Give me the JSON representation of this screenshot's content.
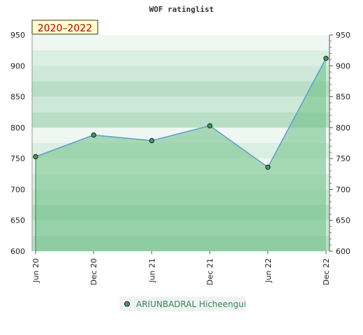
{
  "chart_data": {
    "type": "area",
    "title": "WOF ratinglist",
    "period_label": "2020–2022",
    "x_ticks": [
      "Jun 20",
      "Dec 20",
      "Jun 21",
      "Dec 21",
      "Jun 22",
      "Dec 22"
    ],
    "y_ticks": [
      600,
      650,
      700,
      750,
      800,
      850,
      900,
      950
    ],
    "ylim": [
      600,
      950
    ],
    "grid": true,
    "legend_position": "bottom-center",
    "series": [
      {
        "name": "ARIUNBADRAL Hicheengui",
        "x": [
          "Jun 20",
          "Dec 20",
          "Jun 21",
          "Dec 21",
          "Jun 22",
          "Dec 22"
        ],
        "values": [
          753,
          788,
          779,
          803,
          736,
          912
        ]
      }
    ],
    "colors": {
      "line": "#5b9bd5",
      "fill": "#6cbf84",
      "marker": "#3c9c5e",
      "legend_text": "#2e8b57",
      "period_label_bg": "#ffffcc"
    }
  }
}
